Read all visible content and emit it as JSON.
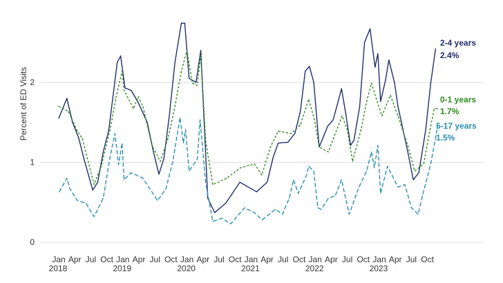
{
  "chart_data": {
    "type": "line",
    "title": "",
    "ylabel": "Percent of ED Visits",
    "xlabel": "",
    "ylim": [
      0,
      2.8
    ],
    "xlim": [
      "2018-01-01",
      "2023-12-31"
    ],
    "grid": true,
    "y_ticks": [
      "0",
      "1",
      "2"
    ],
    "y_tick_values": [
      0,
      1,
      2
    ],
    "x_ticks": [
      {
        "date": "2018-01-01",
        "month": "Jan",
        "year": "2018"
      },
      {
        "date": "2018-04-01",
        "month": "Apr",
        "year": ""
      },
      {
        "date": "2018-07-01",
        "month": "Jul",
        "year": ""
      },
      {
        "date": "2018-10-01",
        "month": "Oct",
        "year": ""
      },
      {
        "date": "2019-01-01",
        "month": "Jan",
        "year": "2019"
      },
      {
        "date": "2019-04-01",
        "month": "Apr",
        "year": ""
      },
      {
        "date": "2019-07-01",
        "month": "Jul",
        "year": ""
      },
      {
        "date": "2019-10-01",
        "month": "Oct",
        "year": ""
      },
      {
        "date": "2020-01-01",
        "month": "Jan",
        "year": "2020"
      },
      {
        "date": "2020-04-01",
        "month": "Apr",
        "year": ""
      },
      {
        "date": "2020-07-01",
        "month": "Jul",
        "year": ""
      },
      {
        "date": "2020-10-01",
        "month": "Oct",
        "year": ""
      },
      {
        "date": "2021-01-01",
        "month": "Jan",
        "year": "2021"
      },
      {
        "date": "2021-04-01",
        "month": "Apr",
        "year": ""
      },
      {
        "date": "2021-07-01",
        "month": "Jul",
        "year": ""
      },
      {
        "date": "2021-10-01",
        "month": "Oct",
        "year": ""
      },
      {
        "date": "2022-01-01",
        "month": "Jan",
        "year": "2022"
      },
      {
        "date": "2022-04-01",
        "month": "Apr",
        "year": ""
      },
      {
        "date": "2022-07-01",
        "month": "Jul",
        "year": ""
      },
      {
        "date": "2022-10-01",
        "month": "Oct",
        "year": ""
      },
      {
        "date": "2023-01-01",
        "month": "Jan",
        "year": "2023"
      },
      {
        "date": "2023-04-01",
        "month": "Apr",
        "year": ""
      },
      {
        "date": "2023-07-01",
        "month": "Jul",
        "year": ""
      },
      {
        "date": "2023-10-01",
        "month": "Oct",
        "year": ""
      }
    ],
    "series": [
      {
        "name": "2-4 years",
        "end_label": "2.4%",
        "color": "#1f2d6b",
        "dash": "solid",
        "points": [
          [
            "2018-01-01",
            1.55
          ],
          [
            "2018-02-17",
            1.8
          ],
          [
            "2018-03-19",
            1.5
          ],
          [
            "2018-04-24",
            1.3
          ],
          [
            "2018-05-22",
            1.05
          ],
          [
            "2018-07-12",
            0.65
          ],
          [
            "2018-08-10",
            0.75
          ],
          [
            "2018-09-11",
            1.13
          ],
          [
            "2018-10-12",
            1.4
          ],
          [
            "2018-11-02",
            1.76
          ],
          [
            "2018-11-30",
            2.25
          ],
          [
            "2018-12-19",
            2.33
          ],
          [
            "2019-01-13",
            1.93
          ],
          [
            "2019-02-18",
            1.9
          ],
          [
            "2019-03-27",
            1.75
          ],
          [
            "2019-05-18",
            1.5
          ],
          [
            "2019-06-23",
            1.13
          ],
          [
            "2019-07-24",
            0.85
          ],
          [
            "2019-08-22",
            1.05
          ],
          [
            "2019-09-23",
            1.6
          ],
          [
            "2019-10-24",
            2.25
          ],
          [
            "2019-11-30",
            2.74
          ],
          [
            "2019-12-19",
            2.74
          ],
          [
            "2020-01-13",
            2.05
          ],
          [
            "2020-02-22",
            2.0
          ],
          [
            "2020-03-19",
            2.4
          ],
          [
            "2020-04-28",
            0.55
          ],
          [
            "2020-06-07",
            0.37
          ],
          [
            "2020-08-10",
            0.49
          ],
          [
            "2020-10-28",
            0.75
          ],
          [
            "2021-02-02",
            0.63
          ],
          [
            "2021-04-01",
            0.75
          ],
          [
            "2021-05-06",
            1.07
          ],
          [
            "2021-06-03",
            1.24
          ],
          [
            "2021-07-28",
            1.25
          ],
          [
            "2021-09-07",
            1.36
          ],
          [
            "2021-10-08",
            1.64
          ],
          [
            "2021-11-05",
            2.14
          ],
          [
            "2021-11-29",
            2.2
          ],
          [
            "2021-12-23",
            2.0
          ],
          [
            "2022-01-24",
            1.19
          ],
          [
            "2022-03-11",
            1.45
          ],
          [
            "2022-04-12",
            1.53
          ],
          [
            "2022-05-29",
            1.92
          ],
          [
            "2022-06-22",
            1.62
          ],
          [
            "2022-07-20",
            1.21
          ],
          [
            "2022-08-09",
            1.28
          ],
          [
            "2022-09-11",
            1.7
          ],
          [
            "2022-10-08",
            2.5
          ],
          [
            "2022-11-09",
            2.67
          ],
          [
            "2022-12-07",
            2.19
          ],
          [
            "2022-12-23",
            2.36
          ],
          [
            "2023-01-08",
            1.76
          ],
          [
            "2023-02-05",
            2.02
          ],
          [
            "2023-02-25",
            2.28
          ],
          [
            "2023-03-27",
            1.99
          ],
          [
            "2023-04-16",
            1.7
          ],
          [
            "2023-06-11",
            1.13
          ],
          [
            "2023-07-12",
            0.78
          ],
          [
            "2023-08-13",
            0.87
          ],
          [
            "2023-09-22",
            1.41
          ],
          [
            "2023-10-20",
            1.99
          ],
          [
            "2023-11-17",
            2.42
          ]
        ]
      },
      {
        "name": "0-1 years",
        "end_label": "1.7%",
        "color": "#2e8b1e",
        "dash": "dotted",
        "points": [
          [
            "2018-01-01",
            1.7
          ],
          [
            "2018-02-25",
            1.64
          ],
          [
            "2018-04-16",
            1.39
          ],
          [
            "2018-05-13",
            1.3
          ],
          [
            "2018-07-20",
            0.72
          ],
          [
            "2018-08-30",
            0.95
          ],
          [
            "2018-10-20",
            1.41
          ],
          [
            "2018-11-21",
            1.79
          ],
          [
            "2018-12-27",
            2.14
          ],
          [
            "2019-01-08",
            1.9
          ],
          [
            "2019-03-01",
            1.67
          ],
          [
            "2019-03-27",
            1.82
          ],
          [
            "2019-04-24",
            1.7
          ],
          [
            "2019-06-15",
            1.21
          ],
          [
            "2019-08-01",
            1.01
          ],
          [
            "2019-09-15",
            1.3
          ],
          [
            "2019-10-24",
            1.7
          ],
          [
            "2019-11-30",
            2.14
          ],
          [
            "2020-01-01",
            2.4
          ],
          [
            "2020-02-01",
            1.99
          ],
          [
            "2020-02-29",
            1.96
          ],
          [
            "2020-03-19",
            2.34
          ],
          [
            "2020-04-16",
            1.27
          ],
          [
            "2020-05-26",
            0.72
          ],
          [
            "2020-08-14",
            0.8
          ],
          [
            "2020-11-01",
            0.93
          ],
          [
            "2021-01-20",
            0.98
          ],
          [
            "2021-03-01",
            0.84
          ],
          [
            "2021-04-20",
            1.19
          ],
          [
            "2021-06-03",
            1.39
          ],
          [
            "2021-08-17",
            1.36
          ],
          [
            "2021-10-08",
            1.47
          ],
          [
            "2021-11-25",
            1.79
          ],
          [
            "2021-12-27",
            1.53
          ],
          [
            "2022-01-24",
            1.19
          ],
          [
            "2022-03-15",
            1.13
          ],
          [
            "2022-06-02",
            1.58
          ],
          [
            "2022-07-01",
            1.41
          ],
          [
            "2022-08-01",
            1.01
          ],
          [
            "2022-09-19",
            1.41
          ],
          [
            "2022-10-20",
            1.76
          ],
          [
            "2022-11-17",
            1.99
          ],
          [
            "2022-12-15",
            1.79
          ],
          [
            "2023-01-16",
            1.58
          ],
          [
            "2023-03-03",
            1.84
          ],
          [
            "2023-04-16",
            1.58
          ],
          [
            "2023-06-11",
            1.21
          ],
          [
            "2023-07-20",
            0.89
          ],
          [
            "2023-09-10",
            0.98
          ],
          [
            "2023-10-08",
            1.32
          ],
          [
            "2023-11-09",
            1.67
          ],
          [
            "2023-11-29",
            1.67
          ]
        ]
      },
      {
        "name": "5-17 years",
        "end_label": "1.5%",
        "color": "#2a8fb0",
        "dash": "dashed",
        "points": [
          [
            "2018-01-04",
            0.63
          ],
          [
            "2018-02-17",
            0.8
          ],
          [
            "2018-03-04",
            0.67
          ],
          [
            "2018-04-16",
            0.52
          ],
          [
            "2018-06-03",
            0.49
          ],
          [
            "2018-07-20",
            0.32
          ],
          [
            "2018-09-11",
            0.55
          ],
          [
            "2018-10-20",
            1.07
          ],
          [
            "2018-11-17",
            1.36
          ],
          [
            "2018-12-07",
            0.97
          ],
          [
            "2018-12-27",
            1.24
          ],
          [
            "2019-01-08",
            0.78
          ],
          [
            "2019-02-18",
            0.87
          ],
          [
            "2019-04-24",
            0.8
          ],
          [
            "2019-07-16",
            0.52
          ],
          [
            "2019-09-03",
            0.67
          ],
          [
            "2019-10-12",
            1.01
          ],
          [
            "2019-11-22",
            1.56
          ],
          [
            "2019-12-11",
            1.24
          ],
          [
            "2019-12-23",
            1.41
          ],
          [
            "2020-01-13",
            0.89
          ],
          [
            "2020-02-29",
            1.04
          ],
          [
            "2020-03-15",
            1.53
          ],
          [
            "2020-04-16",
            0.75
          ],
          [
            "2020-05-26",
            0.26
          ],
          [
            "2020-07-16",
            0.3
          ],
          [
            "2020-09-07",
            0.23
          ],
          [
            "2020-11-25",
            0.43
          ],
          [
            "2021-01-20",
            0.37
          ],
          [
            "2021-03-03",
            0.28
          ],
          [
            "2021-05-18",
            0.41
          ],
          [
            "2021-06-27",
            0.35
          ],
          [
            "2021-08-05",
            0.55
          ],
          [
            "2021-08-30",
            0.78
          ],
          [
            "2021-09-26",
            0.61
          ],
          [
            "2021-11-13",
            0.84
          ],
          [
            "2021-11-25",
            0.95
          ],
          [
            "2021-12-23",
            0.89
          ],
          [
            "2022-01-16",
            0.43
          ],
          [
            "2022-02-05",
            0.41
          ],
          [
            "2022-03-15",
            0.55
          ],
          [
            "2022-04-24",
            0.58
          ],
          [
            "2022-05-29",
            0.78
          ],
          [
            "2022-07-12",
            0.35
          ],
          [
            "2022-09-07",
            0.69
          ],
          [
            "2022-10-20",
            0.89
          ],
          [
            "2022-11-17",
            1.13
          ],
          [
            "2022-12-03",
            0.93
          ],
          [
            "2022-12-23",
            1.21
          ],
          [
            "2023-01-08",
            0.61
          ],
          [
            "2023-02-17",
            0.95
          ],
          [
            "2023-04-16",
            0.69
          ],
          [
            "2023-05-25",
            0.72
          ],
          [
            "2023-07-01",
            0.43
          ],
          [
            "2023-08-09",
            0.35
          ],
          [
            "2023-09-03",
            0.58
          ],
          [
            "2023-10-20",
            0.98
          ],
          [
            "2023-11-29",
            1.45
          ]
        ]
      }
    ]
  }
}
